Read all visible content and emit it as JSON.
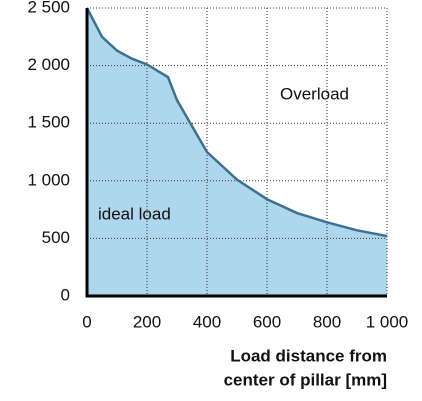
{
  "chart_data": {
    "type": "area",
    "x": [
      0,
      50,
      100,
      150,
      200,
      270,
      300,
      400,
      500,
      600,
      700,
      800,
      900,
      1000
    ],
    "values": [
      2500,
      2250,
      2130,
      2060,
      2010,
      1900,
      1700,
      1250,
      1010,
      840,
      720,
      640,
      570,
      520
    ],
    "color": "#aed6ec",
    "line_color": "#3c7190",
    "xlim": [
      0,
      1000
    ],
    "ylim": [
      0,
      2500
    ],
    "xticks": [
      0,
      200,
      400,
      600,
      800,
      {
        "value": 1000,
        "label": "1 000"
      }
    ],
    "yticks": [
      0,
      500,
      {
        "value": 1000,
        "label": "1 000"
      },
      {
        "value": 1500,
        "label": "1 500"
      },
      {
        "value": 2000,
        "label": "2 000"
      },
      {
        "value": 2500,
        "label": "2 500"
      }
    ],
    "grid": true,
    "x_label": [
      "Load distance from",
      "center of pillar [mm]"
    ],
    "annotations": [
      "Overload",
      "ideal load"
    ]
  }
}
